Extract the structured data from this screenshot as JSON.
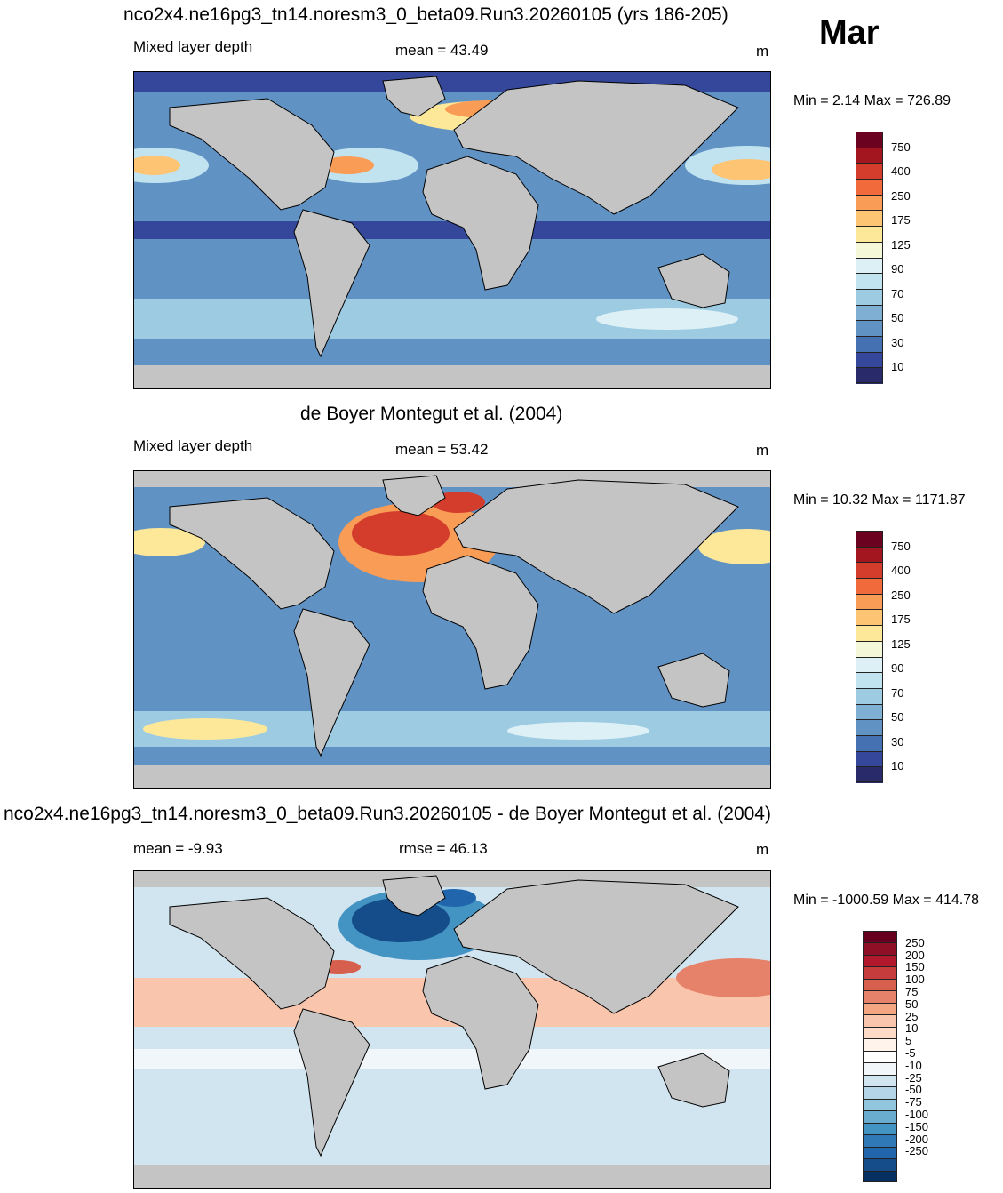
{
  "month": "Mar",
  "panels": [
    {
      "title": "nco2x4.ne16pg3_tn14.noresm3_0_beta09.Run3.20260105 (yrs 186-205)",
      "left_label": "Mixed layer depth",
      "center_label": "mean =  43.49",
      "units": "m",
      "minmax": "Min =   2.14 Max = 726.89",
      "colorbar": {
        "ticks": [
          "750",
          "400",
          "250",
          "175",
          "125",
          "90",
          "70",
          "50",
          "30",
          "10"
        ],
        "colors": [
          "#6a0220",
          "#a4161f",
          "#d43d2b",
          "#f06a3c",
          "#f99c56",
          "#fcc473",
          "#fde89a",
          "#f4f8d8",
          "#dcf0f6",
          "#c1e3ef",
          "#9ccbe2",
          "#7fb0d4",
          "#6192c4",
          "#4570b1",
          "#34479a",
          "#282a6a"
        ]
      }
    },
    {
      "title": "de Boyer Montegut et al. (2004)",
      "left_label": "Mixed layer depth",
      "center_label": "mean =  53.42",
      "units": "m",
      "minmax": "Min =  10.32 Max = 1171.87",
      "colorbar": {
        "ticks": [
          "750",
          "400",
          "250",
          "175",
          "125",
          "90",
          "70",
          "50",
          "30",
          "10"
        ],
        "colors": [
          "#6a0220",
          "#a4161f",
          "#d43d2b",
          "#f06a3c",
          "#f99c56",
          "#fcc473",
          "#fde89a",
          "#f4f8d8",
          "#dcf0f6",
          "#c1e3ef",
          "#9ccbe2",
          "#7fb0d4",
          "#6192c4",
          "#4570b1",
          "#34479a",
          "#282a6a"
        ]
      }
    },
    {
      "title": "nco2x4.ne16pg3_tn14.noresm3_0_beta09.Run3.20260105 - de Boyer Montegut et al. (2004)",
      "left_label": "mean =  -9.93",
      "center_label": "rmse =  46.13",
      "units": "m",
      "minmax": "Min = -1000.59 Max = 414.78",
      "colorbar": {
        "ticks": [
          "250",
          "200",
          "150",
          "100",
          "75",
          "50",
          "25",
          "10",
          "5",
          "-5",
          "-10",
          "-25",
          "-50",
          "-75",
          "-100",
          "-150",
          "-200",
          "-250"
        ],
        "colors": [
          "#67001f",
          "#8e0f26",
          "#b2182b",
          "#c63b3b",
          "#d6604d",
          "#e58269",
          "#f4a582",
          "#f9c5ac",
          "#fddbc7",
          "#fff3ec",
          "#ffffff",
          "#f0f6fa",
          "#d1e5f0",
          "#b4d5e8",
          "#92c5de",
          "#6aacd0",
          "#4393c3",
          "#2f7ab6",
          "#2166ac",
          "#154d8a",
          "#053061"
        ]
      }
    }
  ]
}
